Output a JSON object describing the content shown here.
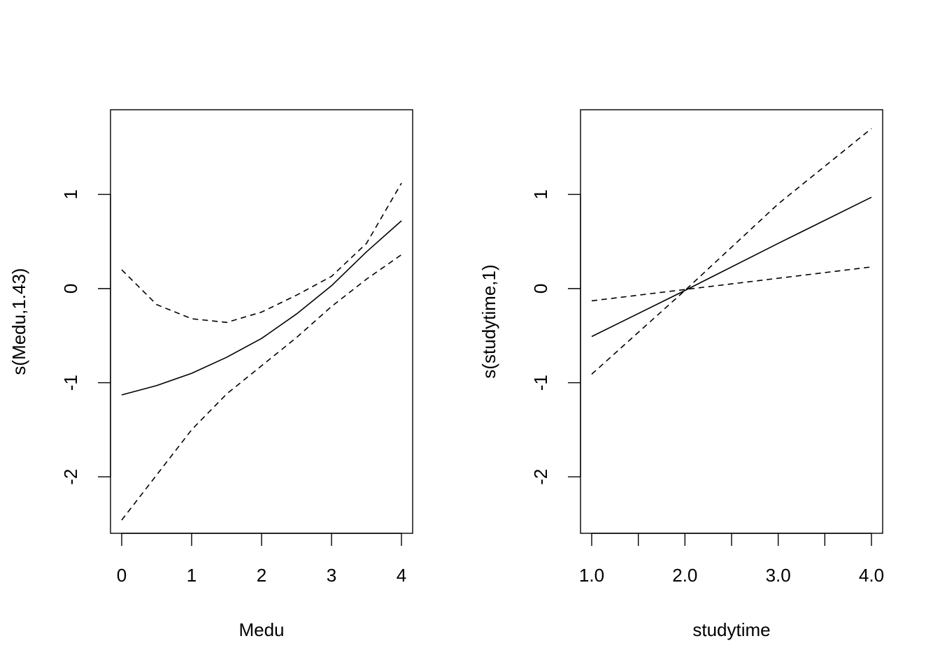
{
  "chart_data": [
    {
      "type": "line",
      "xlabel": "Medu",
      "ylabel": "s(Medu,1.43)",
      "xlim": [
        -0.16,
        4.16
      ],
      "ylim": [
        -2.6,
        1.9
      ],
      "x_ticks": [
        0,
        1,
        2,
        3,
        4
      ],
      "x_tick_labels": [
        "0",
        "1",
        "2",
        "3",
        "4"
      ],
      "y_ticks": [
        -2,
        -1,
        0,
        1
      ],
      "y_tick_labels": [
        "-2",
        "-1",
        "0",
        "1"
      ],
      "grid": false,
      "series": [
        {
          "style": "solid",
          "x": [
            0,
            0.5,
            1,
            1.5,
            2,
            2.5,
            3,
            3.5,
            4
          ],
          "y": [
            -1.13,
            -1.03,
            -0.9,
            -0.73,
            -0.53,
            -0.27,
            0.03,
            0.39,
            0.72
          ]
        },
        {
          "style": "dashed",
          "x": [
            0,
            0.5,
            1,
            1.5,
            2,
            2.5,
            3,
            3.5,
            4
          ],
          "y": [
            0.2,
            -0.17,
            -0.32,
            -0.36,
            -0.25,
            -0.07,
            0.13,
            0.48,
            1.12
          ]
        },
        {
          "style": "dashed",
          "x": [
            0,
            0.5,
            1,
            1.5,
            2,
            2.5,
            3,
            3.5,
            4
          ],
          "y": [
            -2.46,
            -1.98,
            -1.5,
            -1.12,
            -0.82,
            -0.52,
            -0.19,
            0.1,
            0.36
          ]
        }
      ]
    },
    {
      "type": "line",
      "xlabel": "studytime",
      "ylabel": "s(studytime,1)",
      "xlim": [
        0.88,
        4.12
      ],
      "ylim": [
        -2.6,
        1.9
      ],
      "x_ticks": [
        1.0,
        1.5,
        2.0,
        2.5,
        3.0,
        3.5,
        4.0
      ],
      "x_tick_labels": [
        "1.0",
        "",
        "2.0",
        "",
        "3.0",
        "",
        "4.0"
      ],
      "y_ticks": [
        -2,
        -1,
        0,
        1
      ],
      "y_tick_labels": [
        "-2",
        "-1",
        "0",
        "1"
      ],
      "grid": false,
      "series": [
        {
          "style": "solid",
          "x": [
            1,
            2,
            3,
            4
          ],
          "y": [
            -0.51,
            -0.02,
            0.48,
            0.97
          ]
        },
        {
          "style": "dashed",
          "x": [
            1,
            2,
            3,
            4
          ],
          "y": [
            -0.91,
            -0.02,
            0.9,
            1.7
          ]
        },
        {
          "style": "dashed",
          "x": [
            1,
            2,
            3,
            4
          ],
          "y": [
            -0.13,
            -0.01,
            0.11,
            0.23
          ]
        }
      ]
    }
  ]
}
